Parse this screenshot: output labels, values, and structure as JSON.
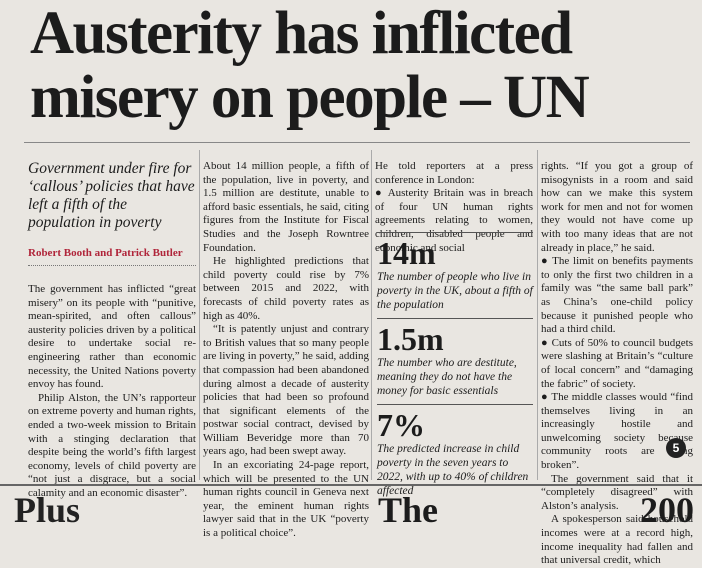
{
  "headline": "Austerity has inflicted misery on people – UN",
  "standfirst": "Government under fire for ‘callous’ policies that have left a fifth of the population in poverty",
  "byline": "Robert Booth and Patrick Butler",
  "columns": [
    {
      "paragraphs": [
        "The government has inflicted “great misery” on its people with “punitive, mean-spirited, and often callous” austerity policies driven by a political desire to undertake social re-engineering rather than economic necessity, the United Nations poverty envoy has found.",
        "Philip Alston, the UN’s rapporteur on extreme poverty and human rights, ended a two-week mission to Britain with a stinging declaration that despite being the world’s fifth largest economy, levels of child poverty are “not just a disgrace, but a social calamity and an economic disaster”."
      ]
    },
    {
      "paragraphs": [
        "About 14 million people, a fifth of the population, live in poverty, and 1.5 million are destitute, unable to afford basic essentials, he said, citing figures from the Institute for Fiscal Studies and the Joseph Rowntree Foundation.",
        "He highlighted predictions that child poverty could rise by 7% between 2015 and 2022, with forecasts of child poverty rates as high as 40%.",
        "“It is patently unjust and contrary to British values that so many people are living in poverty,” he said, adding that compassion had been abandoned during almost a decade of austerity policies that had been so profound that significant elements of the postwar social contract, devised by William Beveridge more than 70 years ago, had been swept away.",
        "In an excoriating 24-page report, which will be presented to the UN human rights council in Geneva next year, the eminent human rights lawyer said that in the UK “poverty is a political choice”."
      ]
    },
    {
      "paragraphs": [
        "He told reporters at a press conference in London:",
        "● Austerity Britain was in breach of four UN human rights agreements relating to women, children, disabled people and economic and social"
      ]
    },
    {
      "paragraphs": [
        "rights. “If you got a group of misogynists in a room and said how can we make this system work for men and not for women they would not have come up with too many ideas that are not already in place,” he said.",
        "● The limit on benefits payments to only the first two children in a family was “the same ball park” as China’s one-child policy because it punished people who had a third child.",
        "● Cuts of 50% to council budgets were slashing at Britain’s “culture of local concern” and “damaging the fabric” of society.",
        "● The middle classes would “find themselves living in an increasingly hostile and unwelcoming society because community roots are being broken”.",
        "The government said that it “completely disagreed” with Alston’s analysis.",
        "A spokesperson said household incomes were at a record high, income inequality had fallen and that universal credit, which"
      ]
    }
  ],
  "stats": [
    {
      "figure": "14m",
      "caption": "The number of people who live in poverty in the UK, about a fifth of the population"
    },
    {
      "figure": "1.5m",
      "caption": "The number who are destitute, meaning they do not have the money for basic essentials"
    },
    {
      "figure": "7%",
      "caption": "The predicted increase in child poverty in the seven years to 2022, with up to 40% of children affected"
    }
  ],
  "page_marker": "5",
  "footer": [
    "Plus",
    "The",
    "200"
  ]
}
